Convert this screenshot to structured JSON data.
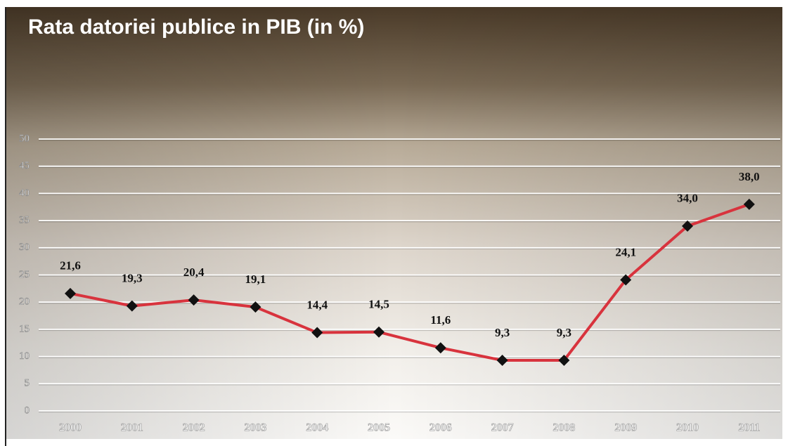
{
  "chart_data": {
    "type": "line",
    "title": "Rata datoriei publice in PIB (in %)",
    "categories": [
      "2000",
      "2001",
      "2002",
      "2003",
      "2004",
      "2005",
      "2006",
      "2007",
      "2008",
      "2009",
      "2010",
      "2011"
    ],
    "values": [
      21.6,
      19.3,
      20.4,
      19.1,
      14.4,
      14.5,
      11.6,
      9.3,
      9.3,
      24.1,
      34.0,
      38.0
    ],
    "value_labels": [
      "21,6",
      "19,3",
      "20,4",
      "19,1",
      "14,4",
      "14,5",
      "11,6",
      "9,3",
      "9,3",
      "24,1",
      "34,0",
      "38,0"
    ],
    "color": "#d8333d",
    "ylim": [
      0,
      50
    ],
    "yticks": [
      0,
      5,
      10,
      15,
      20,
      25,
      30,
      35,
      40,
      45,
      50
    ],
    "grid": true
  }
}
